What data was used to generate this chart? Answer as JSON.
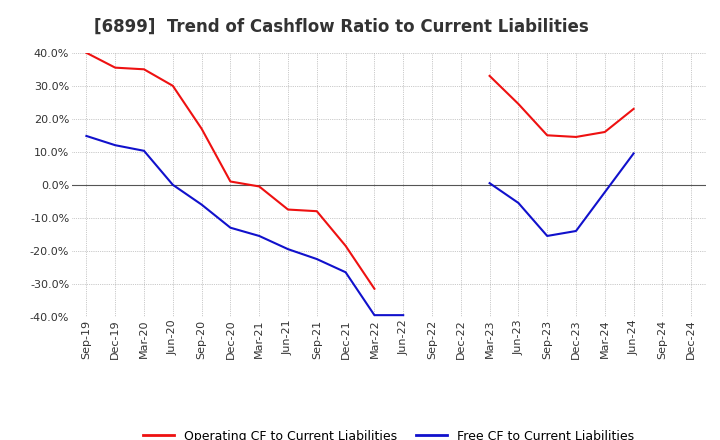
{
  "title": "[6899]  Trend of Cashflow Ratio to Current Liabilities",
  "x_labels": [
    "Sep-19",
    "Dec-19",
    "Mar-20",
    "Jun-20",
    "Sep-20",
    "Dec-20",
    "Mar-21",
    "Jun-21",
    "Sep-21",
    "Dec-21",
    "Mar-22",
    "Jun-22",
    "Sep-22",
    "Dec-22",
    "Mar-23",
    "Jun-23",
    "Sep-23",
    "Dec-23",
    "Mar-24",
    "Jun-24",
    "Sep-24",
    "Dec-24"
  ],
  "operating_cf_seg1": {
    "labels": [
      "Sep-19",
      "Dec-19",
      "Mar-20",
      "Jun-20",
      "Sep-20",
      "Dec-20",
      "Mar-21",
      "Jun-21",
      "Sep-21",
      "Dec-21",
      "Mar-22"
    ],
    "values": [
      0.4,
      0.355,
      0.35,
      0.3,
      0.17,
      0.01,
      -0.005,
      -0.075,
      -0.08,
      -0.185,
      -0.315
    ]
  },
  "operating_cf_seg2": {
    "labels": [
      "Mar-23",
      "Jun-23",
      "Sep-23",
      "Dec-23",
      "Mar-24",
      "Jun-24"
    ],
    "values": [
      0.33,
      0.245,
      0.15,
      0.145,
      0.16,
      0.23
    ]
  },
  "free_cf_seg1": {
    "labels": [
      "Sep-19",
      "Dec-19",
      "Mar-20",
      "Jun-20",
      "Sep-20",
      "Dec-20",
      "Mar-21",
      "Jun-21",
      "Sep-21",
      "Dec-21",
      "Mar-22",
      "Jun-22"
    ],
    "values": [
      0.148,
      0.12,
      0.103,
      0.0,
      -0.06,
      -0.13,
      -0.155,
      -0.195,
      -0.225,
      -0.265,
      -0.395,
      -0.395
    ]
  },
  "free_cf_seg2": {
    "labels": [
      "Mar-23",
      "Jun-23",
      "Sep-23",
      "Dec-23",
      "Jun-24"
    ],
    "values": [
      0.005,
      -0.055,
      -0.155,
      -0.14,
      0.095
    ]
  },
  "ylim": [
    -0.4,
    0.4
  ],
  "yticks": [
    -0.4,
    -0.3,
    -0.2,
    -0.1,
    0.0,
    0.1,
    0.2,
    0.3,
    0.4
  ],
  "operating_color": "#EE1111",
  "free_color": "#1111CC",
  "background_color": "#FFFFFF",
  "grid_color": "#999999",
  "title_fontsize": 12,
  "tick_fontsize": 8,
  "legend_fontsize": 9
}
